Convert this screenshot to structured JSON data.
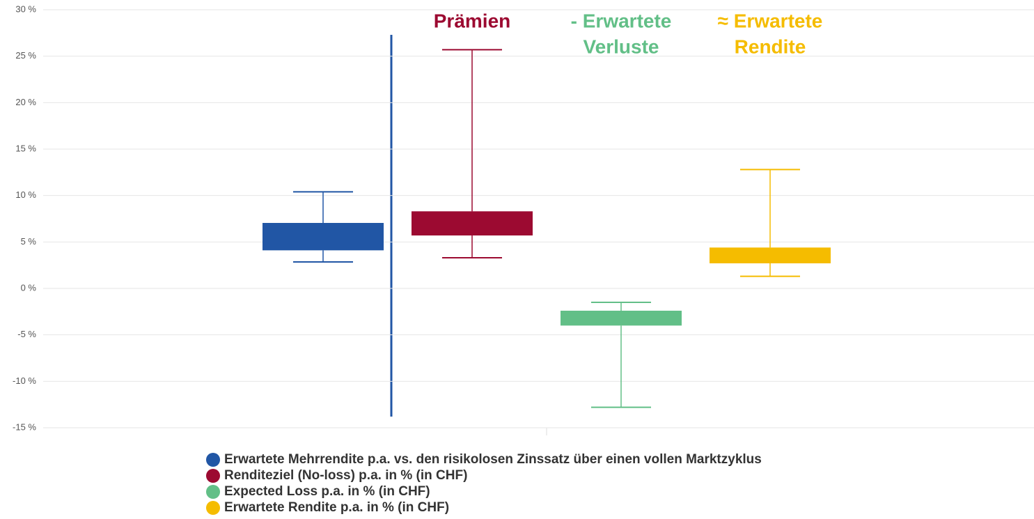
{
  "chart_data": {
    "type": "box",
    "ylim": [
      -15,
      30
    ],
    "yticks": [
      {
        "value": -15,
        "label": "-15 %"
      },
      {
        "value": -10,
        "label": "-10 %"
      },
      {
        "value": -5,
        "label": "-5 %"
      },
      {
        "value": 0,
        "label": "0 %"
      },
      {
        "value": 5,
        "label": "5 %"
      },
      {
        "value": 10,
        "label": "10 %"
      },
      {
        "value": 15,
        "label": "15 %"
      },
      {
        "value": 20,
        "label": "20 %"
      },
      {
        "value": 25,
        "label": "25 %"
      },
      {
        "value": 30,
        "label": "30 %"
      }
    ],
    "grid": true,
    "series": [
      {
        "name": "Erwartete Mehrrendite p.a. vs. den risikolosen Zinssatz über einen vollen Marktzyklus",
        "color": "#2156a5",
        "values": {
          "low": 2.85,
          "q1": 4.1,
          "q3": 7.05,
          "high": 10.4
        }
      },
      {
        "name": "Renditeziel (No-loss) p.a. in % (in CHF)",
        "color": "#9c0a31",
        "values": {
          "low": 3.3,
          "q1": 5.7,
          "q3": 8.3,
          "high": 25.7
        }
      },
      {
        "name": "Expected Loss p.a. in % (in CHF)",
        "color": "#62bf87",
        "values": {
          "low": -12.8,
          "q1": -4.0,
          "q3": -2.4,
          "high": -1.5
        }
      },
      {
        "name": "Erwartete Rendite p.a. in % (in CHF)",
        "color": "#f5bc00",
        "values": {
          "low": 1.3,
          "q1": 2.7,
          "q3": 4.4,
          "high": 12.8
        }
      }
    ],
    "annotations": [
      {
        "lines": [
          "Prämien"
        ],
        "color": "#9c0a31"
      },
      {
        "lines": [
          "- Erwartete",
          "Verluste"
        ],
        "color": "#62bf87"
      },
      {
        "lines": [
          "≈ Erwartete",
          "Rendite"
        ],
        "color": "#f5bc00"
      }
    ]
  }
}
